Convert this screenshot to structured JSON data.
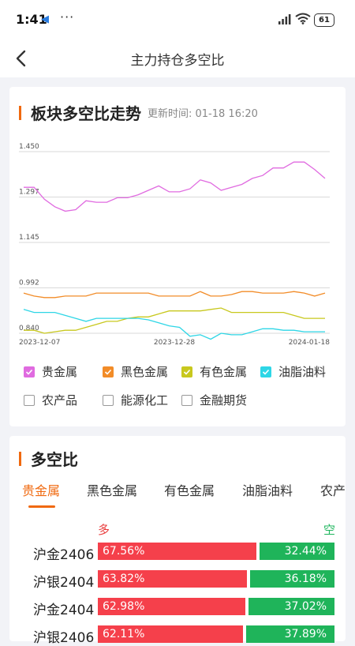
{
  "status": {
    "time": "1:41",
    "dots": "···",
    "battery": "61"
  },
  "nav": {
    "title": "主力持仓多空比"
  },
  "trend": {
    "title": "板块多空比走势",
    "updated": "更新时间: 01-18 16:20"
  },
  "chart_data": {
    "type": "line",
    "y_ticks": [
      "1.450",
      "1.297",
      "1.145",
      "0.992",
      "0.840"
    ],
    "ylim": [
      0.84,
      1.45
    ],
    "x_ticks": [
      "2023-12-07",
      "2023-12-28",
      "2024-01-18"
    ],
    "grid": true,
    "series": [
      {
        "name": "贵金属",
        "color": "#e06be0",
        "values": [
          1.33,
          1.33,
          1.29,
          1.265,
          1.25,
          1.255,
          1.285,
          1.28,
          1.28,
          1.295,
          1.295,
          1.305,
          1.32,
          1.335,
          1.315,
          1.315,
          1.325,
          1.355,
          1.345,
          1.32,
          1.33,
          1.34,
          1.36,
          1.37,
          1.395,
          1.395,
          1.415,
          1.415,
          1.39,
          1.36
        ]
      },
      {
        "name": "黑色金属",
        "color": "#f28c28",
        "values": [
          0.975,
          0.965,
          0.96,
          0.96,
          0.965,
          0.965,
          0.965,
          0.975,
          0.975,
          0.975,
          0.975,
          0.975,
          0.975,
          0.965,
          0.965,
          0.965,
          0.965,
          0.98,
          0.965,
          0.965,
          0.97,
          0.98,
          0.98,
          0.975,
          0.975,
          0.975,
          0.98,
          0.975,
          0.965,
          0.975
        ]
      },
      {
        "name": "有色金属",
        "color": "#c8c81e",
        "values": [
          0.85,
          0.85,
          0.84,
          0.845,
          0.85,
          0.85,
          0.86,
          0.87,
          0.88,
          0.88,
          0.89,
          0.895,
          0.895,
          0.905,
          0.915,
          0.915,
          0.915,
          0.915,
          0.92,
          0.925,
          0.91,
          0.91,
          0.91,
          0.91,
          0.91,
          0.91,
          0.9,
          0.89,
          0.89,
          0.89
        ]
      },
      {
        "name": "油脂油料",
        "color": "#2ed6e6",
        "values": [
          0.92,
          0.91,
          0.91,
          0.91,
          0.9,
          0.89,
          0.88,
          0.89,
          0.89,
          0.89,
          0.89,
          0.89,
          0.885,
          0.875,
          0.865,
          0.86,
          0.83,
          0.835,
          0.82,
          0.84,
          0.835,
          0.835,
          0.845,
          0.855,
          0.855,
          0.85,
          0.85,
          0.845,
          0.845,
          0.845
        ]
      }
    ]
  },
  "legend": [
    {
      "label": "贵金属",
      "checked": true,
      "color": "#e06be0"
    },
    {
      "label": "黑色金属",
      "checked": true,
      "color": "#f28c28"
    },
    {
      "label": "有色金属",
      "checked": true,
      "color": "#c8c81e"
    },
    {
      "label": "油脂油料",
      "checked": true,
      "color": "#2ed6e6"
    },
    {
      "label": "农产品",
      "checked": false
    },
    {
      "label": "能源化工",
      "checked": false
    },
    {
      "label": "金融期货",
      "checked": false
    }
  ],
  "ratio": {
    "title": "多空比",
    "tabs": [
      "贵金属",
      "黑色金属",
      "有色金属",
      "油脂油料",
      "农产"
    ],
    "active_tab": 0,
    "long_label": "多",
    "short_label": "空",
    "rows": [
      {
        "name": "沪金2406",
        "long": "67.56%",
        "short": "32.44%",
        "long_pct": 67.56
      },
      {
        "name": "沪银2404",
        "long": "63.82%",
        "short": "36.18%",
        "long_pct": 63.82
      },
      {
        "name": "沪金2404",
        "long": "62.98%",
        "short": "37.02%",
        "long_pct": 62.98
      },
      {
        "name": "沪银2406",
        "long": "62.11%",
        "short": "37.89%",
        "long_pct": 62.11
      }
    ]
  },
  "colors": {
    "accent": "#f0690f",
    "long": "#f5404b",
    "short": "#1fb45a"
  }
}
